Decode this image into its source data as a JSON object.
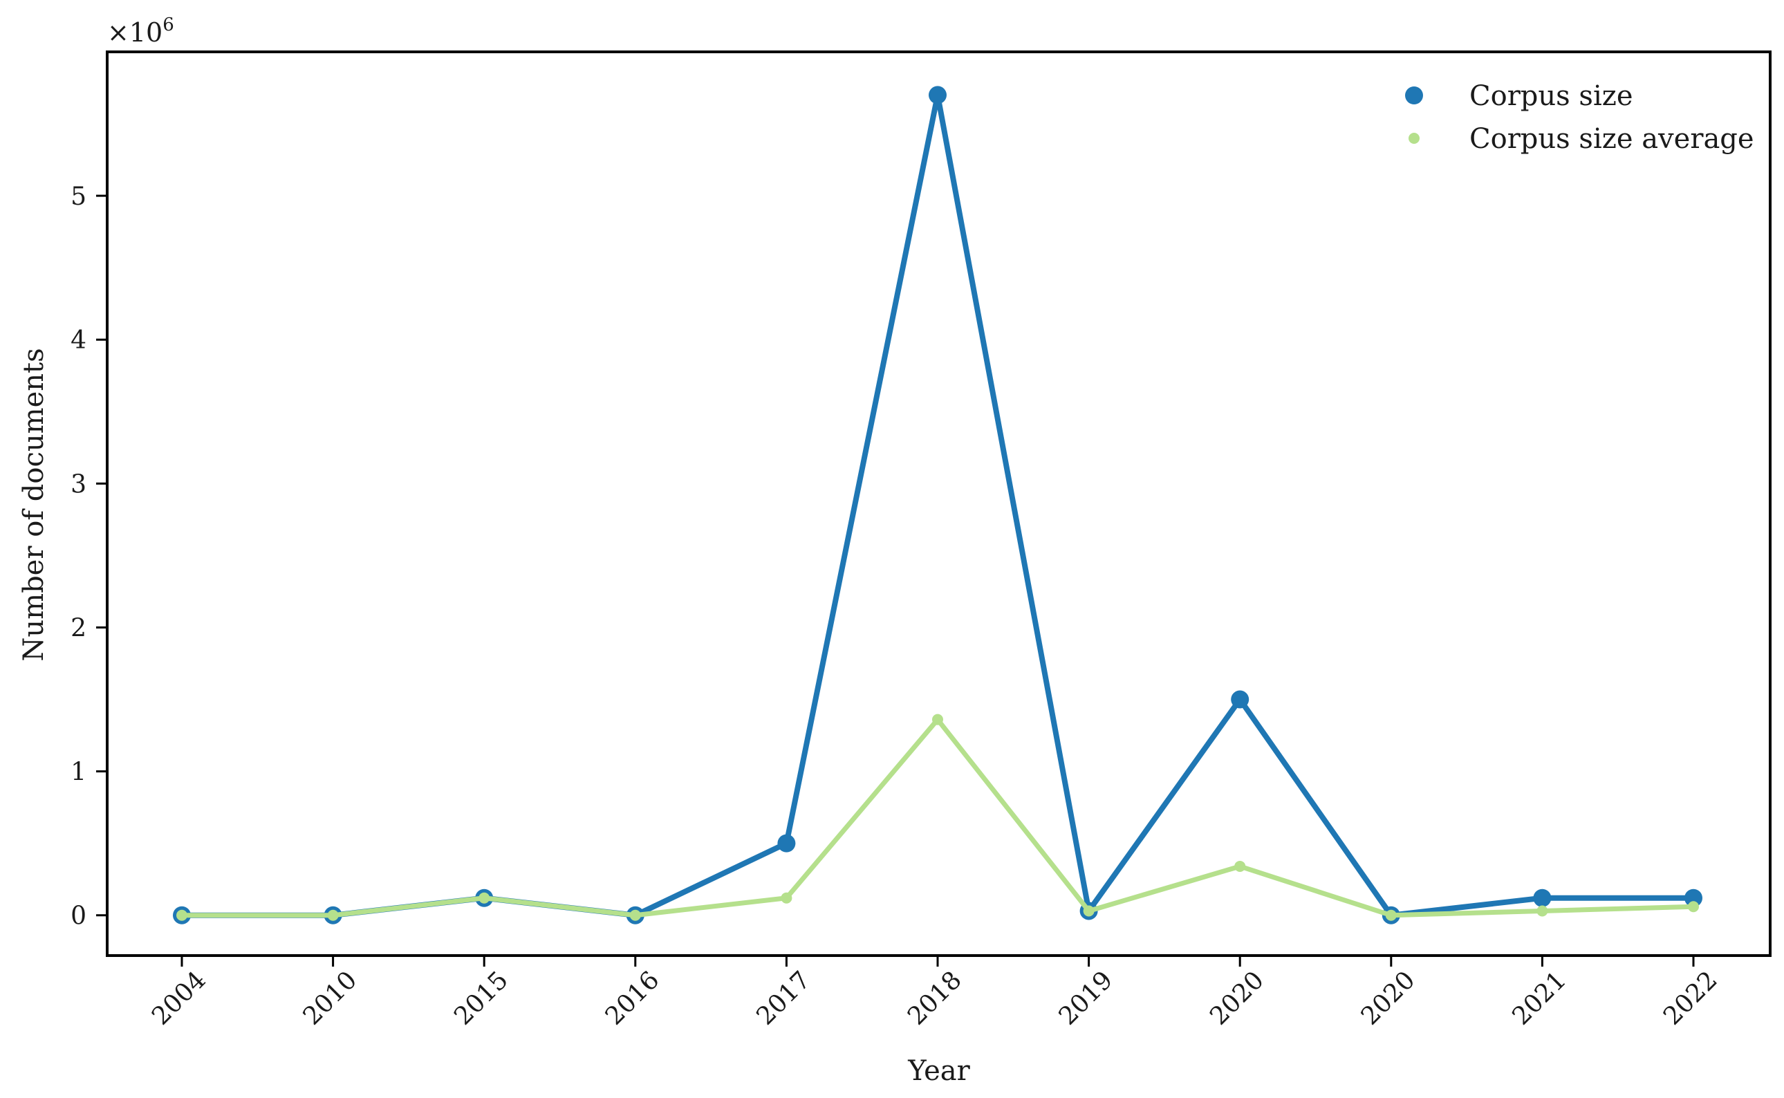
{
  "chart_data": {
    "type": "line",
    "title": "",
    "xlabel": "Year",
    "ylabel": "Number of documents",
    "y_multiplier_label": "×10",
    "y_multiplier_exponent": "6",
    "categories": [
      "2004",
      "2010",
      "2015",
      "2016",
      "2017",
      "2018",
      "2019",
      "2020",
      "2020",
      "2021",
      "2022"
    ],
    "yticks": [
      "0",
      "1",
      "2",
      "3",
      "4",
      "5"
    ],
    "ylim": [
      -0.28,
      6.0
    ],
    "ylim_unit_note": "",
    "grid": false,
    "legend_position": "top-right",
    "series": [
      {
        "name": "Corpus size",
        "color": "#1f77b4",
        "values": [
          0.0,
          0.0,
          0.12,
          0.0,
          0.5,
          5.7,
          0.03,
          1.5,
          0.0,
          0.12,
          0.12
        ]
      },
      {
        "name": "Corpus size average",
        "color": "#b5e08c",
        "values": [
          0.0,
          0.0,
          0.12,
          0.0,
          0.12,
          1.36,
          0.03,
          0.34,
          0.0,
          0.03,
          0.06
        ]
      }
    ]
  }
}
